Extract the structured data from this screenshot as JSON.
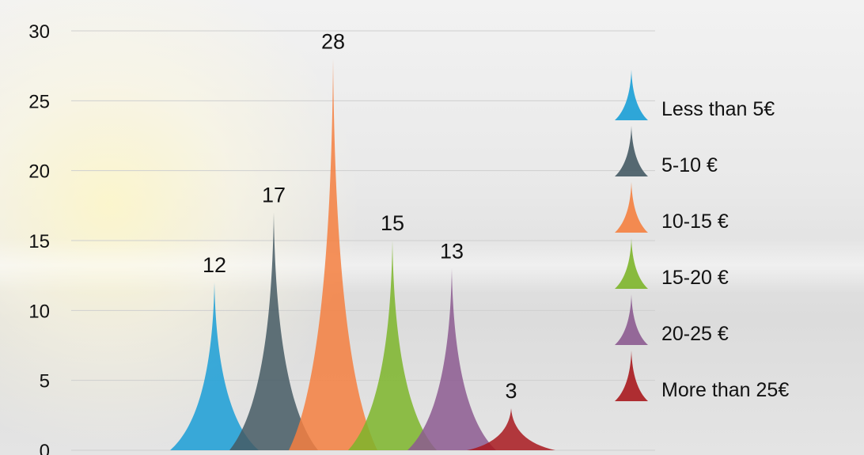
{
  "chart_data": {
    "type": "bar",
    "title": "",
    "xlabel": "",
    "ylabel": "",
    "ylim": [
      0,
      30
    ],
    "y_ticks": [
      0,
      5,
      10,
      15,
      20,
      25,
      30
    ],
    "grid": true,
    "legend_position": "right",
    "categories": [
      "Less than 5€",
      "5-10 €",
      "10-15 €",
      "15-20 €",
      "20-25 €",
      "More than 25€"
    ],
    "values": [
      12,
      17,
      28,
      15,
      13,
      3
    ],
    "colors": [
      "#1a9ed6",
      "#455a64",
      "#f47f3f",
      "#7db52a",
      "#8c5b90",
      "#a8191e"
    ],
    "mark_shape": "cone-spike"
  }
}
